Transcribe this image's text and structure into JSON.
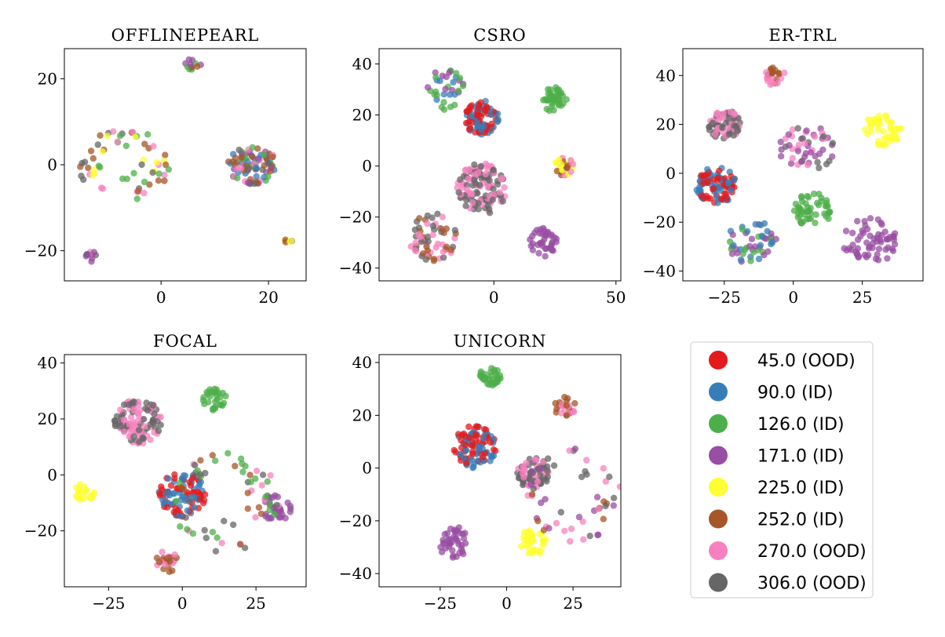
{
  "legend": [
    {
      "label": "45.0 (OOD)",
      "color": "#e41a1c"
    },
    {
      "label": "90.0 (ID)",
      "color": "#377eb8"
    },
    {
      "label": "126.0 (ID)",
      "color": "#4daf4a"
    },
    {
      "label": "171.0 (ID)",
      "color": "#984ea3"
    },
    {
      "label": "225.0 (ID)",
      "color": "#ffff33"
    },
    {
      "label": "252.0 (ID)",
      "color": "#a65628"
    },
    {
      "label": "270.0 (OOD)",
      "color": "#f781bf"
    },
    {
      "label": "306.0 (OOD)",
      "color": "#666666"
    }
  ],
  "chart_data": [
    {
      "type": "scatter",
      "title": "OFFLINEPEARL",
      "xlim": [
        -18,
        27
      ],
      "ylim": [
        -27,
        27
      ],
      "xticks": [
        0,
        20
      ],
      "xtick_labels": [
        "0",
        "20"
      ],
      "yticks": [
        -20,
        0,
        20
      ],
      "ytick_labels": [
        "−20",
        "0",
        "20"
      ],
      "clusters": [
        {
          "label": "306.0 (OOD)",
          "cx": -7,
          "cy": 0,
          "r": 8.5,
          "n": 60,
          "mix": [
            "306.0 (OOD)",
            "270.0 (OOD)",
            "252.0 (ID)",
            "126.0 (ID)",
            "225.0 (ID)"
          ],
          "shape": "ring"
        },
        {
          "label": "270.0 (OOD)",
          "cx": 17,
          "cy": 0,
          "r": 4.5,
          "n": 90,
          "mix": [
            "270.0 (OOD)",
            "306.0 (OOD)",
            "90.0 (ID)",
            "171.0 (ID)",
            "252.0 (ID)",
            "126.0 (ID)"
          ],
          "shape": "disk"
        },
        {
          "label": "171.0 (ID)",
          "cx": 6,
          "cy": 23.5,
          "r": 1.5,
          "n": 12,
          "mix": [
            "171.0 (ID)",
            "252.0 (ID)",
            "126.0 (ID)"
          ],
          "shape": "disk"
        },
        {
          "label": "171.0 (ID)",
          "cx": -13,
          "cy": -21.5,
          "r": 1.4,
          "n": 10,
          "mix": [
            "171.0 (ID)",
            "306.0 (OOD)",
            "270.0 (OOD)"
          ],
          "shape": "disk"
        },
        {
          "label": "306.0 (OOD)",
          "cx": 24,
          "cy": -17.5,
          "r": 1.0,
          "n": 6,
          "mix": [
            "306.0 (OOD)",
            "225.0 (ID)",
            "252.0 (ID)"
          ],
          "shape": "disk"
        }
      ]
    },
    {
      "type": "scatter",
      "title": "CSRO",
      "xlim": [
        -47,
        52
      ],
      "ylim": [
        -45,
        46
      ],
      "xticks": [
        0,
        50
      ],
      "xtick_labels": [
        "0",
        "50"
      ],
      "yticks": [
        -40,
        -20,
        0,
        20,
        40
      ],
      "ytick_labels": [
        "−40",
        "−20",
        "0",
        "20",
        "40"
      ],
      "clusters": [
        {
          "label": "90.0 (ID)",
          "cx": -5,
          "cy": 19,
          "r": 7,
          "n": 90,
          "mix": [
            "90.0 (ID)",
            "45.0 (OOD)"
          ],
          "shape": "disk"
        },
        {
          "label": "306.0 (OOD)",
          "cx": -5,
          "cy": -9,
          "r": 10,
          "n": 130,
          "mix": [
            "306.0 (OOD)",
            "270.0 (OOD)"
          ],
          "shape": "disk"
        },
        {
          "label": "126.0 (ID)",
          "cx": 25,
          "cy": 26,
          "r": 5,
          "n": 40,
          "mix": [
            "126.0 (ID)"
          ],
          "shape": "disk"
        },
        {
          "label": "225.0 (ID)",
          "cx": 29,
          "cy": 0,
          "r": 4,
          "n": 30,
          "mix": [
            "225.0 (ID)",
            "270.0 (OOD)",
            "252.0 (ID)"
          ],
          "shape": "disk"
        },
        {
          "label": "171.0 (ID)",
          "cx": 20,
          "cy": -30,
          "r": 6,
          "n": 40,
          "mix": [
            "171.0 (ID)"
          ],
          "shape": "disk"
        },
        {
          "label": "90.0 (ID)",
          "cx": -20,
          "cy": 30,
          "r": 8,
          "n": 35,
          "mix": [
            "90.0 (ID)",
            "171.0 (ID)",
            "126.0 (ID)"
          ],
          "shape": "disk"
        },
        {
          "label": "270.0 (OOD)",
          "cx": -25,
          "cy": -28,
          "r": 10,
          "n": 60,
          "mix": [
            "270.0 (OOD)",
            "252.0 (ID)",
            "306.0 (OOD)"
          ],
          "shape": "disk"
        }
      ]
    },
    {
      "type": "scatter",
      "title": "ER-TRL",
      "xlim": [
        -40,
        47
      ],
      "ylim": [
        -44,
        51
      ],
      "xticks": [
        -25,
        0,
        25
      ],
      "xtick_labels": [
        "−25",
        "0",
        "25"
      ],
      "yticks": [
        -40,
        -20,
        0,
        20,
        40
      ],
      "ytick_labels": [
        "−40",
        "−20",
        "0",
        "20",
        "40"
      ],
      "clusters": [
        {
          "label": "90.0 (ID)",
          "cx": -28,
          "cy": -5,
          "r": 7.5,
          "n": 100,
          "mix": [
            "90.0 (ID)",
            "45.0 (OOD)"
          ],
          "shape": "disk"
        },
        {
          "label": "306.0 (OOD)",
          "cx": -25,
          "cy": 20,
          "r": 6,
          "n": 80,
          "mix": [
            "306.0 (OOD)",
            "270.0 (OOD)"
          ],
          "shape": "disk"
        },
        {
          "label": "252.0 (ID)",
          "cx": -7,
          "cy": 40,
          "r": 4,
          "n": 25,
          "mix": [
            "252.0 (ID)",
            "270.0 (OOD)"
          ],
          "shape": "disk"
        },
        {
          "label": "225.0 (ID)",
          "cx": 32,
          "cy": 17,
          "r": 7,
          "n": 50,
          "mix": [
            "225.0 (ID)"
          ],
          "shape": "disk"
        },
        {
          "label": "126.0 (ID)",
          "cx": 7,
          "cy": -15,
          "r": 7,
          "n": 50,
          "mix": [
            "126.0 (ID)"
          ],
          "shape": "disk"
        },
        {
          "label": "171.0 (ID)",
          "cx": 28,
          "cy": -28,
          "r": 10,
          "n": 60,
          "mix": [
            "171.0 (ID)"
          ],
          "shape": "disk"
        },
        {
          "label": "90.0 (ID)",
          "cx": -15,
          "cy": -28,
          "r": 9,
          "n": 50,
          "mix": [
            "90.0 (ID)",
            "171.0 (ID)",
            "126.0 (ID)"
          ],
          "shape": "disk"
        },
        {
          "label": "171.0 (ID)",
          "cx": 5,
          "cy": 10,
          "r": 10,
          "n": 50,
          "mix": [
            "171.0 (ID)",
            "306.0 (OOD)",
            "270.0 (OOD)"
          ],
          "shape": "disk"
        }
      ]
    },
    {
      "type": "scatter",
      "title": "FOCAL",
      "xlim": [
        -40,
        42
      ],
      "ylim": [
        -40,
        43
      ],
      "xticks": [
        -25,
        0,
        25
      ],
      "xtick_labels": [
        "−25",
        "0",
        "25"
      ],
      "yticks": [
        -20,
        0,
        20,
        40
      ],
      "ytick_labels": [
        "−20",
        "0",
        "20",
        "40"
      ],
      "clusters": [
        {
          "label": "306.0 (OOD)",
          "cx": -15,
          "cy": 19,
          "r": 8,
          "n": 110,
          "mix": [
            "306.0 (OOD)",
            "270.0 (OOD)"
          ],
          "shape": "disk"
        },
        {
          "label": "90.0 (ID)",
          "cx": 0,
          "cy": -7,
          "r": 8,
          "n": 100,
          "mix": [
            "90.0 (ID)",
            "45.0 (OOD)"
          ],
          "shape": "disk"
        },
        {
          "label": "126.0 (ID)",
          "cx": 11,
          "cy": 27,
          "r": 4,
          "n": 30,
          "mix": [
            "126.0 (ID)"
          ],
          "shape": "disk"
        },
        {
          "label": "225.0 (ID)",
          "cx": -33,
          "cy": -6,
          "r": 3.5,
          "n": 20,
          "mix": [
            "225.0 (ID)"
          ],
          "shape": "disk"
        },
        {
          "label": "252.0 (ID)",
          "cx": -5,
          "cy": -31,
          "r": 4,
          "n": 25,
          "mix": [
            "252.0 (ID)",
            "270.0 (OOD)"
          ],
          "shape": "disk"
        },
        {
          "label": "171.0 (ID)",
          "cx": 32,
          "cy": -12,
          "r": 5,
          "n": 30,
          "mix": [
            "171.0 (ID)"
          ],
          "shape": "disk"
        },
        {
          "label": "270.0 (OOD)",
          "cx": 15,
          "cy": -10,
          "r": 18,
          "n": 60,
          "mix": [
            "270.0 (OOD)",
            "306.0 (OOD)",
            "252.0 (ID)",
            "126.0 (ID)"
          ],
          "shape": "ring"
        }
      ]
    },
    {
      "type": "scatter",
      "title": "UNICORN",
      "xlim": [
        -48,
        43
      ],
      "ylim": [
        -45,
        43
      ],
      "xticks": [
        -25,
        0,
        25
      ],
      "xtick_labels": [
        "−25",
        "0",
        "25"
      ],
      "yticks": [
        -40,
        -20,
        0,
        20,
        40
      ],
      "ytick_labels": [
        "−40",
        "−20",
        "0",
        "20",
        "40"
      ],
      "clusters": [
        {
          "label": "90.0 (ID)",
          "cx": -12,
          "cy": 8,
          "r": 8,
          "n": 100,
          "mix": [
            "90.0 (ID)",
            "45.0 (OOD)"
          ],
          "shape": "disk"
        },
        {
          "label": "306.0 (OOD)",
          "cx": 10,
          "cy": -2,
          "r": 6,
          "n": 70,
          "mix": [
            "306.0 (OOD)",
            "270.0 (OOD)"
          ],
          "shape": "disk"
        },
        {
          "label": "126.0 (ID)",
          "cx": -6,
          "cy": 35,
          "r": 4,
          "n": 35,
          "mix": [
            "126.0 (ID)"
          ],
          "shape": "disk"
        },
        {
          "label": "252.0 (ID)",
          "cx": 22,
          "cy": 23,
          "r": 4,
          "n": 25,
          "mix": [
            "252.0 (ID)",
            "270.0 (OOD)"
          ],
          "shape": "disk"
        },
        {
          "label": "171.0 (ID)",
          "cx": -20,
          "cy": -28,
          "r": 6,
          "n": 40,
          "mix": [
            "171.0 (ID)"
          ],
          "shape": "disk"
        },
        {
          "label": "225.0 (ID)",
          "cx": 10,
          "cy": -28,
          "r": 5,
          "n": 35,
          "mix": [
            "225.0 (ID)"
          ],
          "shape": "disk"
        },
        {
          "label": "171.0 (ID)",
          "cx": 25,
          "cy": -10,
          "r": 18,
          "n": 50,
          "mix": [
            "171.0 (ID)",
            "306.0 (OOD)",
            "270.0 (OOD)",
            "252.0 (ID)"
          ],
          "shape": "ring"
        }
      ]
    }
  ]
}
